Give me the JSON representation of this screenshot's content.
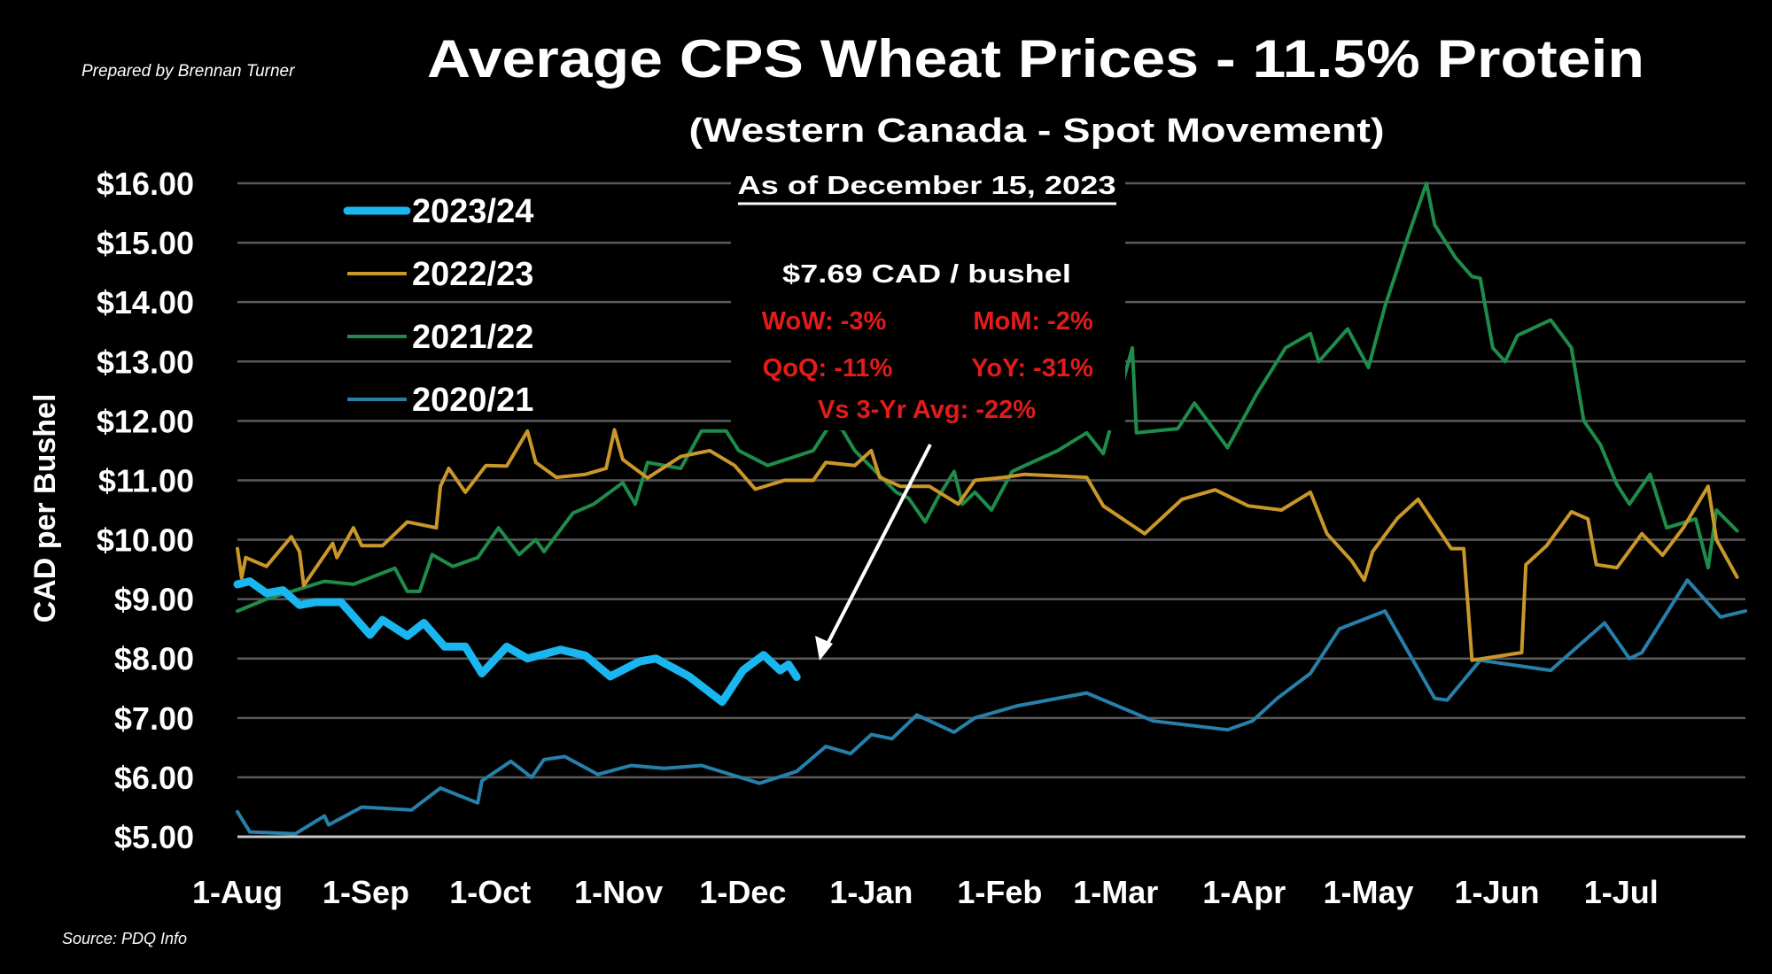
{
  "header": {
    "title": "Average CPS Wheat Prices - 11.5% Protein",
    "subtitle": "(Western Canada - Spot Movement)",
    "prepared_by": "Prepared by Brennan Turner",
    "source": "Source: PDQ Info"
  },
  "annotation": {
    "as_of": "As of December 15, 2023",
    "price": "$7.69 CAD / bushel",
    "wow": "WoW: -3%",
    "mom": "MoM: -2%",
    "qoq": "QoQ: -11%",
    "yoy": "YoY: -31%",
    "vs_avg": "Vs 3-Yr Avg: -22%",
    "stat_color": "#e31b1b"
  },
  "chart_data": {
    "type": "line",
    "title": "Average CPS Wheat Prices - 11.5% Protein",
    "subtitle": "(Western Canada - Spot Movement)",
    "ylabel": "CAD per Bushel",
    "xlabel": "",
    "ylim": [
      5,
      16
    ],
    "xlim": [
      "08-01",
      "07-31"
    ],
    "x_format": "MM-DD (marketing year Aug-Jul)",
    "grid": true,
    "legend_placement": "top-left",
    "y_ticks": [
      "$16.00",
      "$15.00",
      "$14.00",
      "$13.00",
      "$12.00",
      "$11.00",
      "$10.00",
      "$9.00",
      "$8.00",
      "$7.00",
      "$6.00",
      "$5.00"
    ],
    "y_tick_values": [
      16,
      15,
      14,
      13,
      12,
      11,
      10,
      9,
      8,
      7,
      6,
      5
    ],
    "x_ticks": [
      {
        "label": "1-Aug",
        "date": "08-01"
      },
      {
        "label": "1-Sep",
        "date": "09-01"
      },
      {
        "label": "1-Oct",
        "date": "10-01"
      },
      {
        "label": "1-Nov",
        "date": "11-01"
      },
      {
        "label": "1-Dec",
        "date": "12-01"
      },
      {
        "label": "1-Jan",
        "date": "01-01"
      },
      {
        "label": "1-Feb",
        "date": "02-01"
      },
      {
        "label": "1-Mar",
        "date": "03-01"
      },
      {
        "label": "1-Apr",
        "date": "04-01"
      },
      {
        "label": "1-May",
        "date": "05-01"
      },
      {
        "label": "1-Jun",
        "date": "06-01"
      },
      {
        "label": "1-Jul",
        "date": "07-01"
      }
    ],
    "series": [
      {
        "name": "2020/21",
        "color": "#2780aa",
        "points": [
          [
            "08-01",
            5.42
          ],
          [
            "08-04",
            5.08
          ],
          [
            "08-15",
            5.05
          ],
          [
            "08-22",
            5.35
          ],
          [
            "08-23",
            5.2
          ],
          [
            "08-31",
            5.5
          ],
          [
            "09-12",
            5.45
          ],
          [
            "09-19",
            5.82
          ],
          [
            "09-28",
            5.57
          ],
          [
            "09-29",
            5.94
          ],
          [
            "10-06",
            6.27
          ],
          [
            "10-11",
            6.0
          ],
          [
            "10-14",
            6.3
          ],
          [
            "10-19",
            6.35
          ],
          [
            "10-27",
            6.05
          ],
          [
            "11-04",
            6.2
          ],
          [
            "11-12",
            6.15
          ],
          [
            "11-21",
            6.2
          ],
          [
            "12-05",
            5.9
          ],
          [
            "12-14",
            6.1
          ],
          [
            "12-21",
            6.52
          ],
          [
            "12-27",
            6.4
          ],
          [
            "01-01",
            6.72
          ],
          [
            "01-06",
            6.65
          ],
          [
            "01-12",
            7.05
          ],
          [
            "01-21",
            6.76
          ],
          [
            "01-26",
            7.0
          ],
          [
            "02-05",
            7.2
          ],
          [
            "02-22",
            7.42
          ],
          [
            "03-10",
            6.95
          ],
          [
            "03-28",
            6.8
          ],
          [
            "04-03",
            6.95
          ],
          [
            "04-09",
            7.33
          ],
          [
            "04-17",
            7.75
          ],
          [
            "04-24",
            8.5
          ],
          [
            "05-05",
            8.8
          ],
          [
            "05-17",
            7.33
          ],
          [
            "05-20",
            7.3
          ],
          [
            "05-28",
            7.97
          ],
          [
            "06-14",
            7.8
          ],
          [
            "06-27",
            8.6
          ],
          [
            "07-03",
            8.0
          ],
          [
            "07-06",
            8.1
          ],
          [
            "07-17",
            9.32
          ],
          [
            "07-25",
            8.7
          ],
          [
            "07-31",
            8.8
          ]
        ]
      },
      {
        "name": "2021/22",
        "color": "#1e8c4a",
        "points": [
          [
            "08-01",
            8.8
          ],
          [
            "08-08",
            9.0
          ],
          [
            "08-15",
            9.15
          ],
          [
            "08-22",
            9.3
          ],
          [
            "08-29",
            9.25
          ],
          [
            "09-08",
            9.52
          ],
          [
            "09-11",
            9.13
          ],
          [
            "09-14",
            9.13
          ],
          [
            "09-17",
            9.75
          ],
          [
            "09-22",
            9.55
          ],
          [
            "09-28",
            9.7
          ],
          [
            "10-03",
            10.2
          ],
          [
            "10-08",
            9.75
          ],
          [
            "10-12",
            10.0
          ],
          [
            "10-14",
            9.8
          ],
          [
            "10-21",
            10.45
          ],
          [
            "10-26",
            10.6
          ],
          [
            "11-02",
            10.96
          ],
          [
            "11-05",
            10.6
          ],
          [
            "11-08",
            11.3
          ],
          [
            "11-16",
            11.2
          ],
          [
            "11-21",
            11.83
          ],
          [
            "11-27",
            11.83
          ],
          [
            "11-30",
            11.5
          ],
          [
            "12-07",
            11.25
          ],
          [
            "12-18",
            11.5
          ],
          [
            "12-22",
            11.93
          ],
          [
            "12-25",
            11.85
          ],
          [
            "12-28",
            11.5
          ],
          [
            "01-02",
            11.15
          ],
          [
            "01-07",
            10.8
          ],
          [
            "01-10",
            10.7
          ],
          [
            "01-14",
            10.3
          ],
          [
            "01-17",
            10.7
          ],
          [
            "01-21",
            11.15
          ],
          [
            "01-23",
            10.6
          ],
          [
            "01-26",
            10.8
          ],
          [
            "01-30",
            10.5
          ],
          [
            "02-04",
            11.15
          ],
          [
            "02-15",
            11.5
          ],
          [
            "02-22",
            11.8
          ],
          [
            "02-26",
            11.45
          ],
          [
            "03-05",
            13.23
          ],
          [
            "03-06",
            11.8
          ],
          [
            "03-16",
            11.87
          ],
          [
            "03-20",
            12.3
          ],
          [
            "03-28",
            11.55
          ],
          [
            "04-04",
            12.45
          ],
          [
            "04-11",
            13.23
          ],
          [
            "04-17",
            13.47
          ],
          [
            "04-19",
            13.0
          ],
          [
            "04-26",
            13.55
          ],
          [
            "05-01",
            12.9
          ],
          [
            "05-05",
            13.93
          ],
          [
            "05-11",
            15.2
          ],
          [
            "05-15",
            16.0
          ],
          [
            "05-17",
            15.3
          ],
          [
            "05-22",
            14.75
          ],
          [
            "05-26",
            14.43
          ],
          [
            "05-28",
            14.4
          ],
          [
            "05-31",
            13.23
          ],
          [
            "06-03",
            13.0
          ],
          [
            "06-06",
            13.44
          ],
          [
            "06-14",
            13.7
          ],
          [
            "06-19",
            13.23
          ],
          [
            "06-22",
            12.0
          ],
          [
            "06-26",
            11.6
          ],
          [
            "06-30",
            10.93
          ],
          [
            "07-03",
            10.6
          ],
          [
            "07-08",
            11.1
          ],
          [
            "07-12",
            10.2
          ],
          [
            "07-19",
            10.35
          ],
          [
            "07-22",
            9.53
          ],
          [
            "07-24",
            10.5
          ],
          [
            "07-29",
            10.15
          ]
        ]
      },
      {
        "name": "2022/23",
        "color": "#c9972a",
        "points": [
          [
            "08-01",
            9.85
          ],
          [
            "08-02",
            9.36
          ],
          [
            "08-03",
            9.7
          ],
          [
            "08-08",
            9.55
          ],
          [
            "08-14",
            10.05
          ],
          [
            "08-16",
            9.8
          ],
          [
            "08-17",
            9.23
          ],
          [
            "08-24",
            9.94
          ],
          [
            "08-25",
            9.7
          ],
          [
            "08-29",
            10.2
          ],
          [
            "08-31",
            9.9
          ],
          [
            "09-05",
            9.9
          ],
          [
            "09-11",
            10.3
          ],
          [
            "09-18",
            10.2
          ],
          [
            "09-19",
            10.9
          ],
          [
            "09-21",
            11.2
          ],
          [
            "09-25",
            10.8
          ],
          [
            "09-30",
            11.25
          ],
          [
            "10-05",
            11.24
          ],
          [
            "10-10",
            11.83
          ],
          [
            "10-12",
            11.3
          ],
          [
            "10-17",
            11.05
          ],
          [
            "10-24",
            11.1
          ],
          [
            "10-29",
            11.2
          ],
          [
            "10-31",
            11.85
          ],
          [
            "11-02",
            11.35
          ],
          [
            "11-08",
            11.04
          ],
          [
            "11-16",
            11.4
          ],
          [
            "11-23",
            11.5
          ],
          [
            "11-29",
            11.25
          ],
          [
            "12-04",
            10.85
          ],
          [
            "12-11",
            11.0
          ],
          [
            "12-18",
            11.0
          ],
          [
            "12-21",
            11.3
          ],
          [
            "12-28",
            11.25
          ],
          [
            "01-01",
            11.5
          ],
          [
            "01-03",
            11.05
          ],
          [
            "01-08",
            10.9
          ],
          [
            "01-15",
            10.9
          ],
          [
            "01-22",
            10.6
          ],
          [
            "01-26",
            11.0
          ],
          [
            "02-02",
            11.05
          ],
          [
            "02-07",
            11.1
          ],
          [
            "02-22",
            11.05
          ],
          [
            "02-26",
            10.57
          ],
          [
            "03-08",
            10.1
          ],
          [
            "03-17",
            10.68
          ],
          [
            "03-25",
            10.84
          ],
          [
            "04-02",
            10.57
          ],
          [
            "04-10",
            10.5
          ],
          [
            "04-17",
            10.8
          ],
          [
            "04-21",
            10.1
          ],
          [
            "04-27",
            9.64
          ],
          [
            "04-30",
            9.32
          ],
          [
            "05-02",
            9.8
          ],
          [
            "05-08",
            10.36
          ],
          [
            "05-13",
            10.68
          ],
          [
            "05-21",
            9.85
          ],
          [
            "05-24",
            9.85
          ],
          [
            "05-26",
            7.97
          ],
          [
            "06-07",
            8.1
          ],
          [
            "06-08",
            9.58
          ],
          [
            "06-13",
            9.9
          ],
          [
            "06-19",
            10.47
          ],
          [
            "06-23",
            10.35
          ],
          [
            "06-25",
            9.58
          ],
          [
            "06-30",
            9.53
          ],
          [
            "07-06",
            10.1
          ],
          [
            "07-11",
            9.74
          ],
          [
            "07-16",
            10.2
          ],
          [
            "07-22",
            10.9
          ],
          [
            "07-24",
            10.0
          ],
          [
            "07-29",
            9.37
          ]
        ]
      },
      {
        "name": "2023/24",
        "color": "#1ab6ef",
        "points": [
          [
            "08-01",
            9.25
          ],
          [
            "08-04",
            9.3
          ],
          [
            "08-08",
            9.1
          ],
          [
            "08-12",
            9.15
          ],
          [
            "08-16",
            8.9
          ],
          [
            "08-20",
            8.95
          ],
          [
            "08-26",
            8.95
          ],
          [
            "09-02",
            8.4
          ],
          [
            "09-05",
            8.65
          ],
          [
            "09-11",
            8.38
          ],
          [
            "09-15",
            8.6
          ],
          [
            "09-20",
            8.2
          ],
          [
            "09-25",
            8.2
          ],
          [
            "09-29",
            7.75
          ],
          [
            "10-05",
            8.2
          ],
          [
            "10-10",
            8.0
          ],
          [
            "10-18",
            8.15
          ],
          [
            "10-24",
            8.05
          ],
          [
            "10-30",
            7.7
          ],
          [
            "11-06",
            7.95
          ],
          [
            "11-10",
            8.0
          ],
          [
            "11-18",
            7.7
          ],
          [
            "11-26",
            7.27
          ],
          [
            "12-01",
            7.8
          ],
          [
            "12-06",
            8.06
          ],
          [
            "12-10",
            7.8
          ],
          [
            "12-12",
            7.9
          ],
          [
            "12-14",
            7.69
          ]
        ]
      }
    ],
    "legend": [
      "2023/24",
      "2022/23",
      "2021/22",
      "2020/21"
    ],
    "gridline_color": "#5a5a5a"
  }
}
